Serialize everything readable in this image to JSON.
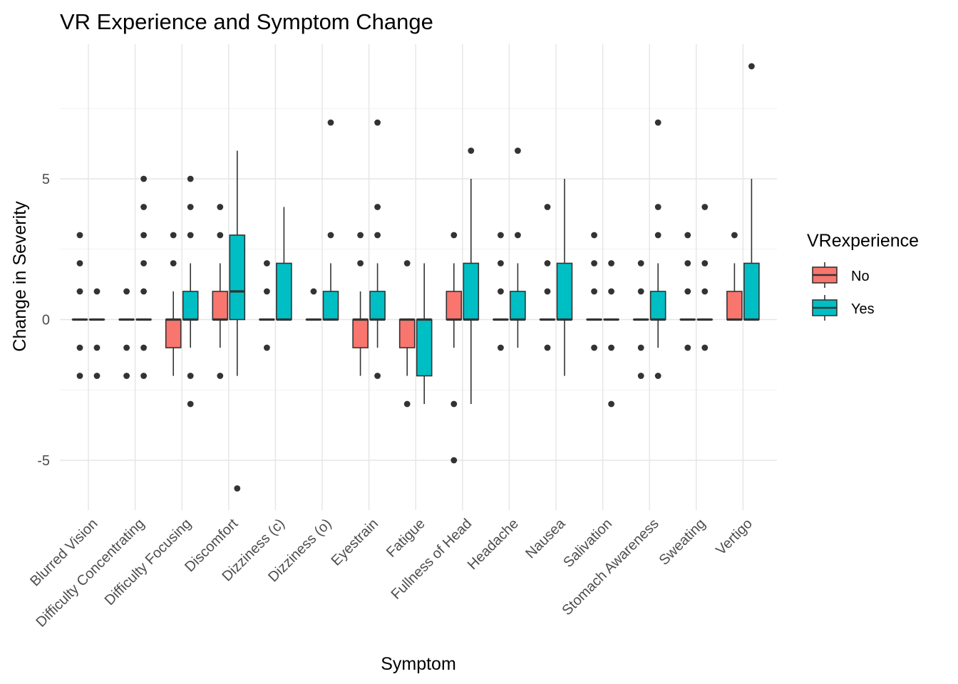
{
  "chart_data": {
    "type": "boxplot",
    "title": "VR Experience and Symptom Change",
    "xlabel": "Symptom",
    "ylabel": "Change in Severity",
    "ylim": [
      -6.7,
      9.6
    ],
    "yticks": [
      -5,
      0,
      5
    ],
    "ytick_labels": [
      "-5",
      "0",
      "5"
    ],
    "grid": true,
    "legend": {
      "title": "VRexperience",
      "position": "right"
    },
    "categories": [
      "Blurred Vision",
      "Difficulty Concentrating",
      "Difficulty Focusing",
      "Discomfort",
      "Dizziness (c)",
      "Dizziness (o)",
      "Eyestrain",
      "Fatigue",
      "Fullness of Head",
      "Headache",
      "Nausea",
      "Salivation",
      "Stomach Awareness",
      "Sweating",
      "Vertigo"
    ],
    "series": [
      {
        "name": "No",
        "color": "#F8766D",
        "boxes": [
          {
            "lower": 0,
            "q1": 0,
            "median": 0,
            "q3": 0,
            "upper": 0,
            "outliers": [
              3,
              2,
              1,
              -1,
              -2
            ]
          },
          {
            "lower": 0,
            "q1": 0,
            "median": 0,
            "q3": 0,
            "upper": 0,
            "outliers": [
              1,
              -1,
              -2
            ]
          },
          {
            "lower": -2,
            "q1": -1,
            "median": 0,
            "q3": 0,
            "upper": 1,
            "outliers": [
              3,
              2
            ]
          },
          {
            "lower": -1,
            "q1": 0,
            "median": 0,
            "q3": 1,
            "upper": 2,
            "outliers": [
              4,
              3,
              -2
            ]
          },
          {
            "lower": 0,
            "q1": 0,
            "median": 0,
            "q3": 0,
            "upper": 0,
            "outliers": [
              2,
              1,
              -1
            ]
          },
          {
            "lower": 0,
            "q1": 0,
            "median": 0,
            "q3": 0,
            "upper": 0,
            "outliers": [
              1
            ]
          },
          {
            "lower": -2,
            "q1": -1,
            "median": 0,
            "q3": 0,
            "upper": 1,
            "outliers": [
              3,
              2
            ]
          },
          {
            "lower": -2,
            "q1": -1,
            "median": 0,
            "q3": 0,
            "upper": 0,
            "outliers": [
              2,
              -3
            ]
          },
          {
            "lower": -1,
            "q1": 0,
            "median": 0,
            "q3": 1,
            "upper": 2,
            "outliers": [
              3,
              -3,
              -5
            ]
          },
          {
            "lower": 0,
            "q1": 0,
            "median": 0,
            "q3": 0,
            "upper": 0,
            "outliers": [
              3,
              2,
              1,
              -1
            ]
          },
          {
            "lower": 0,
            "q1": 0,
            "median": 0,
            "q3": 0,
            "upper": 0,
            "outliers": [
              4,
              2,
              1,
              -1
            ]
          },
          {
            "lower": 0,
            "q1": 0,
            "median": 0,
            "q3": 0,
            "upper": 0,
            "outliers": [
              3,
              2,
              1,
              -1
            ]
          },
          {
            "lower": 0,
            "q1": 0,
            "median": 0,
            "q3": 0,
            "upper": 0,
            "outliers": [
              2,
              1,
              -1,
              -2
            ]
          },
          {
            "lower": 0,
            "q1": 0,
            "median": 0,
            "q3": 0,
            "upper": 0,
            "outliers": [
              3,
              2,
              1,
              -1
            ]
          },
          {
            "lower": 0,
            "q1": 0,
            "median": 0,
            "q3": 1,
            "upper": 2,
            "outliers": [
              3
            ]
          }
        ]
      },
      {
        "name": "Yes",
        "color": "#00BFC4",
        "boxes": [
          {
            "lower": 0,
            "q1": 0,
            "median": 0,
            "q3": 0,
            "upper": 0,
            "outliers": [
              1,
              -1,
              -2
            ]
          },
          {
            "lower": 0,
            "q1": 0,
            "median": 0,
            "q3": 0,
            "upper": 0,
            "outliers": [
              5,
              4,
              3,
              2,
              1,
              -1,
              -2
            ]
          },
          {
            "lower": -1,
            "q1": 0,
            "median": 0,
            "q3": 1,
            "upper": 2,
            "outliers": [
              5,
              4,
              3,
              -2,
              -3
            ]
          },
          {
            "lower": -2,
            "q1": 0,
            "median": 1,
            "q3": 3,
            "upper": 6,
            "outliers": [
              -6
            ]
          },
          {
            "lower": 0,
            "q1": 0,
            "median": 0,
            "q3": 2,
            "upper": 4,
            "outliers": []
          },
          {
            "lower": 0,
            "q1": 0,
            "median": 0,
            "q3": 1,
            "upper": 2,
            "outliers": [
              7,
              3
            ]
          },
          {
            "lower": -1,
            "q1": 0,
            "median": 0,
            "q3": 1,
            "upper": 2,
            "outliers": [
              7,
              4,
              3,
              -2
            ]
          },
          {
            "lower": -3,
            "q1": -2,
            "median": 0,
            "q3": 0,
            "upper": 2,
            "outliers": []
          },
          {
            "lower": -3,
            "q1": 0,
            "median": 0,
            "q3": 2,
            "upper": 5,
            "outliers": [
              6
            ]
          },
          {
            "lower": -1,
            "q1": 0,
            "median": 0,
            "q3": 1,
            "upper": 2,
            "outliers": [
              6,
              3
            ]
          },
          {
            "lower": -2,
            "q1": 0,
            "median": 0,
            "q3": 2,
            "upper": 5,
            "outliers": []
          },
          {
            "lower": 0,
            "q1": 0,
            "median": 0,
            "q3": 0,
            "upper": 0,
            "outliers": [
              2,
              1,
              -1,
              -3
            ]
          },
          {
            "lower": -1,
            "q1": 0,
            "median": 0,
            "q3": 1,
            "upper": 2,
            "outliers": [
              7,
              4,
              3,
              -2
            ]
          },
          {
            "lower": 0,
            "q1": 0,
            "median": 0,
            "q3": 0,
            "upper": 0,
            "outliers": [
              4,
              2,
              1,
              -1
            ]
          },
          {
            "lower": 0,
            "q1": 0,
            "median": 0,
            "q3": 2,
            "upper": 5,
            "outliers": [
              9
            ]
          }
        ]
      }
    ]
  }
}
